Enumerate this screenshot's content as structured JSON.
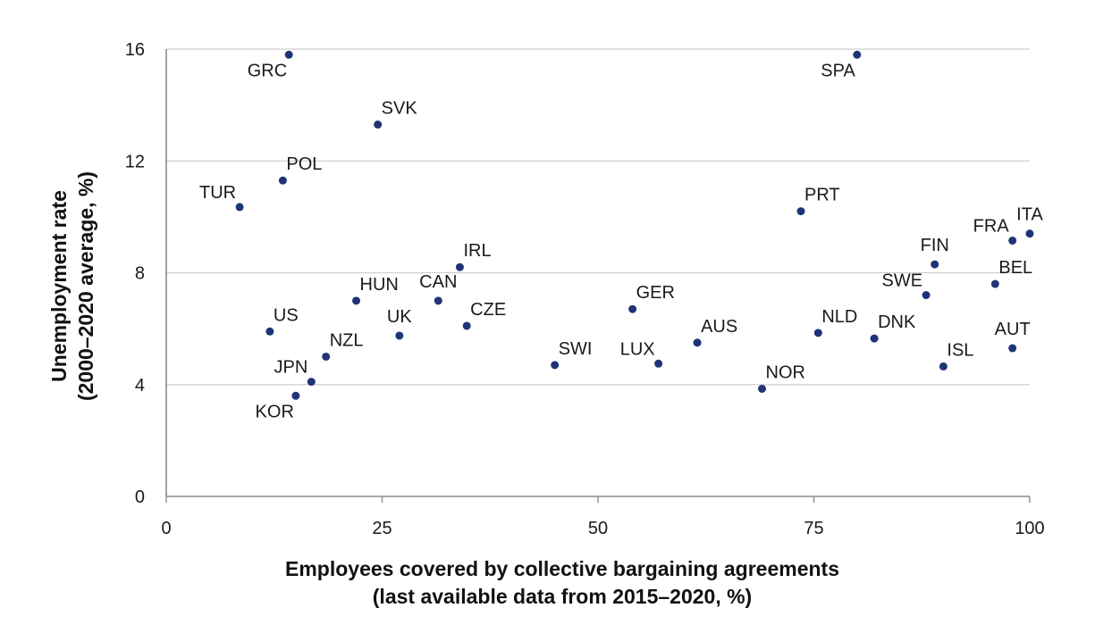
{
  "colors": {
    "point": "#1f3477",
    "grid": "#cfcfcf",
    "axis": "#8a8a8a"
  },
  "chart_data": {
    "type": "scatter",
    "title": "",
    "xlabel_lines": [
      "Employees covered by collective bargaining agreements",
      "(last available data from 2015–2020, %)"
    ],
    "ylabel_lines": [
      "Unemployment rate",
      "(2000–2020 average, %)"
    ],
    "xlim": [
      0,
      100
    ],
    "ylim": [
      0,
      16
    ],
    "xticks": [
      "0",
      "25",
      "50",
      "75",
      "100"
    ],
    "yticks": [
      "0",
      "4",
      "8",
      "12",
      "16"
    ],
    "grid": "horizontal",
    "points": [
      {
        "label": "GRC",
        "x": 14.2,
        "y": 15.8,
        "pos": "lb"
      },
      {
        "label": "SPA",
        "x": 80.0,
        "y": 15.8,
        "pos": "lb"
      },
      {
        "label": "SVK",
        "x": 24.5,
        "y": 13.3,
        "pos": "ra"
      },
      {
        "label": "POL",
        "x": 13.5,
        "y": 11.3,
        "pos": "ra"
      },
      {
        "label": "TUR",
        "x": 8.5,
        "y": 10.35,
        "pos": "la"
      },
      {
        "label": "PRT",
        "x": 73.5,
        "y": 10.2,
        "pos": "ra"
      },
      {
        "label": "ITA",
        "x": 100.0,
        "y": 9.4,
        "pos": "a"
      },
      {
        "label": "FRA",
        "x": 98.0,
        "y": 9.15,
        "pos": "la"
      },
      {
        "label": "FIN",
        "x": 89.0,
        "y": 8.3,
        "pos": "a"
      },
      {
        "label": "IRL",
        "x": 34.0,
        "y": 8.2,
        "pos": "ra"
      },
      {
        "label": "BEL",
        "x": 96.0,
        "y": 7.6,
        "pos": "ra"
      },
      {
        "label": "SWE",
        "x": 88.0,
        "y": 7.2,
        "pos": "la"
      },
      {
        "label": "HUN",
        "x": 22.0,
        "y": 7.0,
        "pos": "ra"
      },
      {
        "label": "CAN",
        "x": 31.5,
        "y": 7.0,
        "pos": "a"
      },
      {
        "label": "GER",
        "x": 54.0,
        "y": 6.7,
        "pos": "ra"
      },
      {
        "label": "CZE",
        "x": 34.8,
        "y": 6.1,
        "pos": "ra"
      },
      {
        "label": "US",
        "x": 12.0,
        "y": 5.9,
        "pos": "ra"
      },
      {
        "label": "NLD",
        "x": 75.5,
        "y": 5.85,
        "pos": "ra"
      },
      {
        "label": "UK",
        "x": 27.0,
        "y": 5.75,
        "pos": "a"
      },
      {
        "label": "DNK",
        "x": 82.0,
        "y": 5.65,
        "pos": "ra"
      },
      {
        "label": "AUS",
        "x": 61.5,
        "y": 5.5,
        "pos": "ra"
      },
      {
        "label": "AUT",
        "x": 98.0,
        "y": 5.3,
        "pos": "a"
      },
      {
        "label": "NZL",
        "x": 18.5,
        "y": 5.0,
        "pos": "ra"
      },
      {
        "label": "LUX",
        "x": 57.0,
        "y": 4.75,
        "pos": "la"
      },
      {
        "label": "SWI",
        "x": 45.0,
        "y": 4.7,
        "pos": "ra"
      },
      {
        "label": "ISL",
        "x": 90.0,
        "y": 4.65,
        "pos": "ra"
      },
      {
        "label": "JPN",
        "x": 16.8,
        "y": 4.1,
        "pos": "la"
      },
      {
        "label": "NOR",
        "x": 69.0,
        "y": 3.85,
        "pos": "ra"
      },
      {
        "label": "KOR",
        "x": 15.0,
        "y": 3.6,
        "pos": "lb"
      }
    ]
  }
}
